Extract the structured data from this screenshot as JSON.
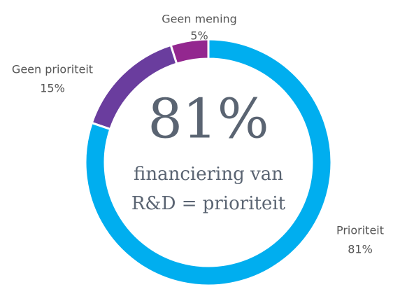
{
  "chart_data": {
    "type": "donut",
    "categories": [
      "Prioriteit",
      "Geen prioriteit",
      "Geen mening"
    ],
    "values": [
      81,
      15,
      5
    ],
    "value_labels": [
      "81%",
      "15%",
      "5%"
    ],
    "colors": [
      "#00aeef",
      "#6a3d9e",
      "#93278f"
    ],
    "center_value": "81%",
    "center_text": [
      "financiering van",
      "R&D = prioriteit"
    ]
  }
}
